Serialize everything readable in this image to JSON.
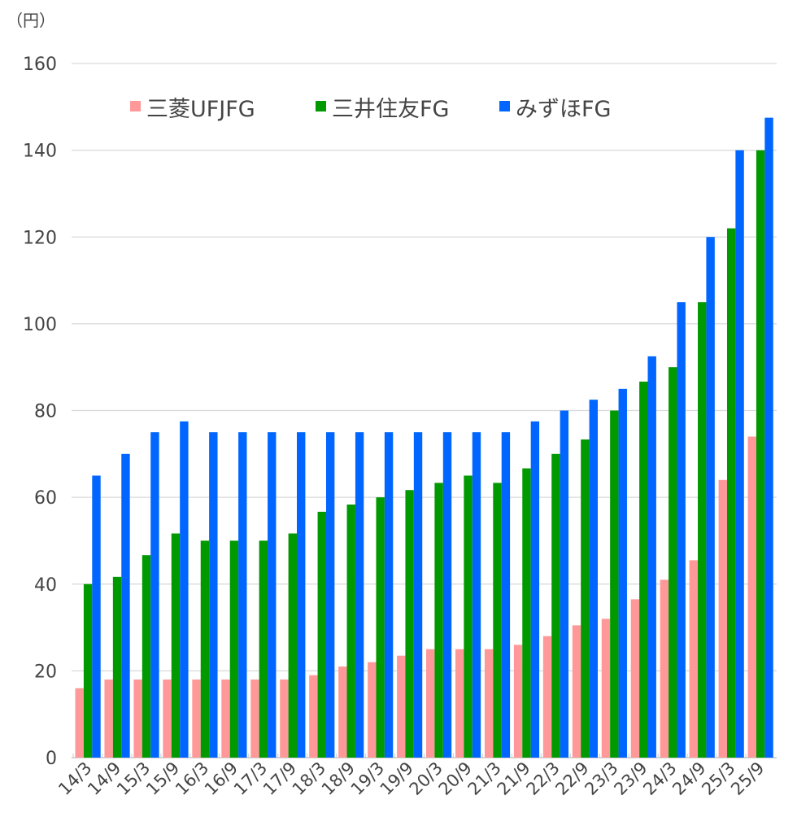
{
  "chart_data": {
    "type": "bar",
    "title": "",
    "unit_label": "（円）",
    "xlabel": "",
    "ylabel": "",
    "ylim": [
      0,
      160
    ],
    "yticks": [
      0,
      20,
      40,
      60,
      80,
      100,
      120,
      140,
      160
    ],
    "grid": true,
    "legend_position": "top-left",
    "categories": [
      "14/3",
      "14/9",
      "15/3",
      "15/9",
      "16/3",
      "16/9",
      "17/3",
      "17/9",
      "18/3",
      "18/9",
      "19/3",
      "19/9",
      "20/3",
      "20/9",
      "21/3",
      "21/9",
      "22/3",
      "22/9",
      "23/3",
      "23/9",
      "24/3",
      "24/9",
      "25/3",
      "25/9"
    ],
    "series": [
      {
        "name": "三菱UFJFG",
        "color": "#ff9999",
        "values": [
          16,
          18,
          18,
          18,
          18,
          18,
          18,
          18,
          19,
          21,
          22,
          23.5,
          25,
          25,
          25,
          26,
          28,
          30.5,
          32,
          36.5,
          41,
          45.5,
          64,
          74
        ]
      },
      {
        "name": "三井住友FG",
        "color": "#009900",
        "values": [
          40,
          41.67,
          46.67,
          51.67,
          50,
          50,
          50,
          51.67,
          56.67,
          58.33,
          60,
          61.67,
          63.33,
          65,
          63.33,
          66.67,
          70,
          73.33,
          80,
          86.67,
          90,
          105,
          122,
          140
        ]
      },
      {
        "name": "みずほFG",
        "color": "#0066ff",
        "values": [
          65,
          70,
          75,
          77.5,
          75,
          75,
          75,
          75,
          75,
          75,
          75,
          75,
          75,
          75,
          75,
          77.5,
          80,
          82.5,
          85,
          92.5,
          105,
          120,
          140,
          147.5
        ]
      }
    ]
  }
}
